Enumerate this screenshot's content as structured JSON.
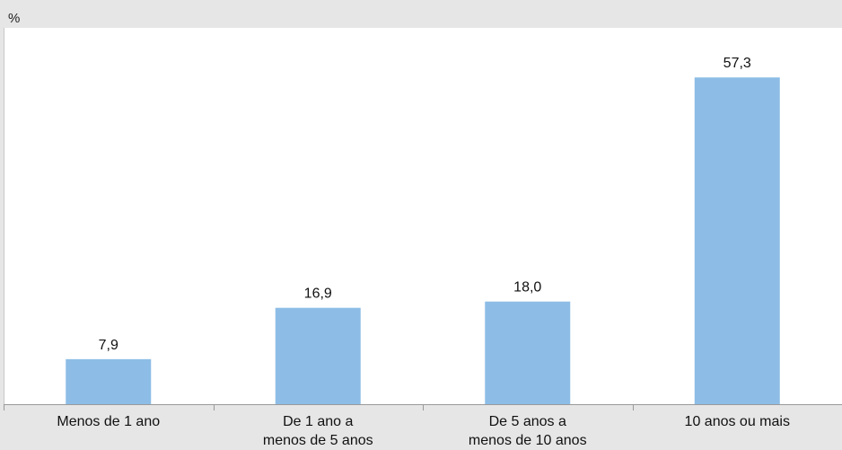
{
  "chart_data": {
    "type": "bar",
    "unit_label": "%",
    "categories": [
      [
        "Menos de 1 ano"
      ],
      [
        "De 1 ano a",
        "menos de 5 anos"
      ],
      [
        "De 5 anos a",
        "menos de 10 anos"
      ],
      [
        "10 anos ou mais"
      ]
    ],
    "values": [
      7.9,
      16.9,
      18.0,
      57.3
    ],
    "data_labels": [
      "7,9",
      "16,9",
      "18,0",
      "57,3"
    ],
    "ylim": [
      0,
      66
    ],
    "grid": false,
    "legend": "none",
    "colors": {
      "bar": "#8dbde6",
      "plot_background": "#ffffff",
      "page_background": "#e6e6e6",
      "axis": "#9a9a9a"
    }
  }
}
